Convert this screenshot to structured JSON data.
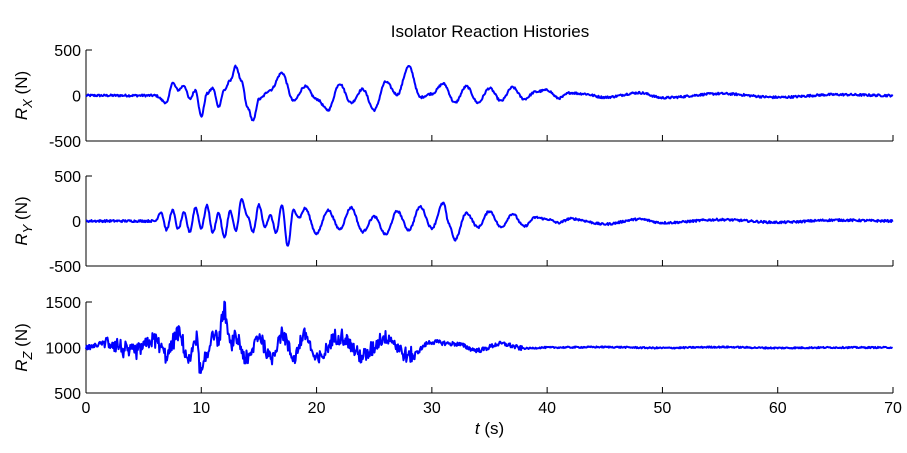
{
  "chart_data": [
    {
      "type": "line",
      "title": "Isolator Reaction Histories",
      "ylabel": {
        "main": "R",
        "sub": "X",
        "unit": " (N)"
      },
      "xlim": [
        0,
        70
      ],
      "ylim": [
        -500,
        500
      ],
      "yticks": [
        "-500",
        "0",
        "500"
      ],
      "grid": false,
      "color": "#0000ff",
      "series": [
        {
          "x": [
            0,
            6,
            7,
            7.5,
            8,
            8.5,
            9,
            9.5,
            10,
            10.5,
            11,
            11.5,
            12,
            12.5,
            13,
            13.5,
            14,
            14.5,
            15,
            16,
            17,
            18,
            19,
            20,
            21,
            22,
            23,
            24,
            25,
            26,
            27,
            28,
            29,
            30,
            31,
            32,
            33,
            34,
            35,
            36,
            37,
            38,
            39,
            40,
            41,
            42,
            43,
            45,
            48,
            50,
            55,
            60,
            65,
            70
          ],
          "y": [
            0,
            0,
            -80,
            140,
            60,
            110,
            -40,
            60,
            -230,
            20,
            80,
            -120,
            60,
            160,
            320,
            150,
            -130,
            -280,
            -40,
            60,
            250,
            -60,
            100,
            -40,
            -160,
            130,
            -80,
            70,
            -160,
            150,
            10,
            320,
            -20,
            20,
            130,
            -80,
            100,
            -80,
            80,
            -60,
            90,
            -40,
            40,
            60,
            -30,
            30,
            20,
            -20,
            30,
            -25,
            20,
            -20,
            10,
            0
          ]
        }
      ]
    },
    {
      "type": "line",
      "title": "",
      "ylabel": {
        "main": "R",
        "sub": "Y",
        "unit": " (N)"
      },
      "xlim": [
        0,
        70
      ],
      "ylim": [
        -500,
        500
      ],
      "yticks": [
        "-500",
        "0",
        "500"
      ],
      "grid": false,
      "color": "#0000ff",
      "series": [
        {
          "x": [
            0,
            6,
            6.5,
            7,
            7.5,
            8,
            8.5,
            9,
            9.5,
            10,
            10.5,
            11,
            11.5,
            12,
            12.5,
            13,
            13.5,
            14,
            14.5,
            15,
            15.5,
            16,
            16.5,
            17,
            17.5,
            18,
            18.5,
            19,
            20,
            21,
            22,
            23,
            24,
            25,
            26,
            27,
            28,
            29,
            30,
            31,
            31.5,
            32,
            33,
            34,
            35,
            36,
            37,
            38,
            39,
            40,
            41,
            42,
            45,
            48,
            50,
            55,
            60,
            65,
            70
          ],
          "y": [
            0,
            0,
            100,
            -100,
            120,
            -90,
            90,
            -120,
            150,
            -80,
            170,
            -130,
            90,
            -180,
            110,
            -110,
            240,
            50,
            -120,
            180,
            -60,
            60,
            -130,
            170,
            -280,
            120,
            40,
            140,
            -140,
            120,
            -90,
            150,
            -120,
            50,
            -150,
            110,
            -100,
            160,
            -80,
            200,
            -40,
            -210,
            90,
            -70,
            110,
            -70,
            80,
            -60,
            40,
            20,
            -20,
            25,
            -35,
            20,
            -20,
            15,
            -15,
            10,
            0
          ]
        }
      ]
    },
    {
      "type": "line",
      "title": "",
      "ylabel": {
        "main": "R",
        "sub": "Z",
        "unit": " (N)"
      },
      "xlabel": {
        "var": "t",
        "unit": " (s)"
      },
      "xlim": [
        0,
        70
      ],
      "ylim": [
        500,
        1500
      ],
      "yticks": [
        "500",
        "1000",
        "1500"
      ],
      "xticks": [
        "0",
        "10",
        "20",
        "30",
        "40",
        "50",
        "60",
        "70"
      ],
      "grid": false,
      "color": "#0000ff",
      "series": [
        {
          "x": [
            0,
            2,
            4,
            6,
            7,
            8,
            9,
            9.5,
            10,
            10.5,
            11,
            11.5,
            12,
            12.5,
            13,
            14,
            15,
            16,
            17,
            18,
            19,
            20,
            22,
            24,
            26,
            28,
            30,
            32,
            34,
            36,
            38,
            40,
            45,
            50,
            55,
            60,
            65,
            70
          ],
          "y": [
            1000,
            1060,
            940,
            1080,
            920,
            1150,
            860,
            1130,
            720,
            900,
            1180,
            1080,
            1420,
            1020,
            1100,
            860,
            1130,
            880,
            1160,
            900,
            1140,
            860,
            1140,
            900,
            1120,
            900,
            1060,
            1040,
            970,
            1040,
            990,
            1000,
            1005,
            995,
            1005,
            995,
            1000,
            1000
          ]
        }
      ]
    }
  ]
}
